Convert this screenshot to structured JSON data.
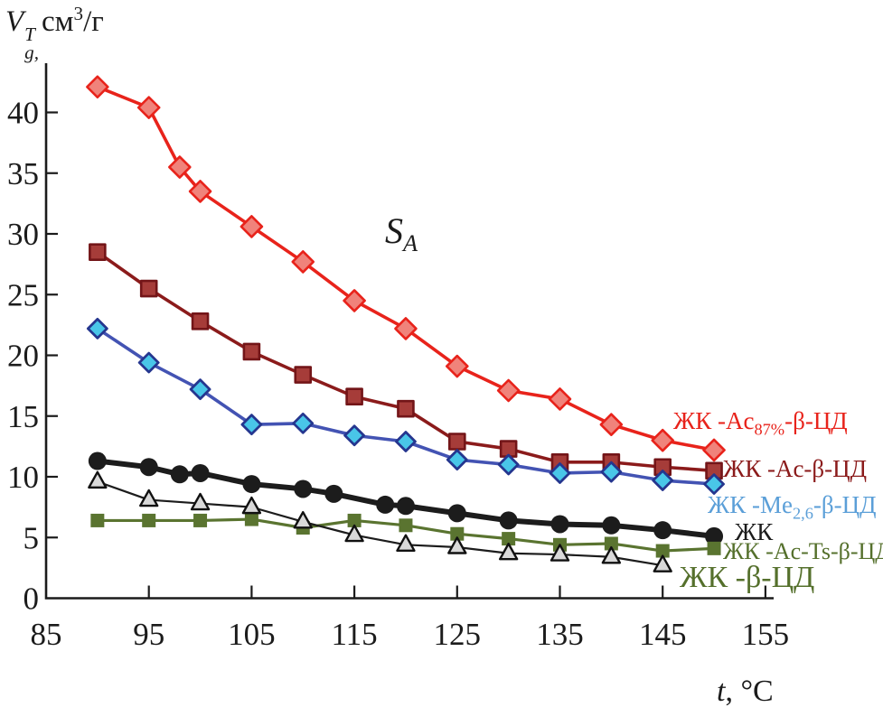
{
  "chart_data": {
    "type": "line",
    "y_title": {
      "base": "V",
      "sup": "T",
      "sub": "g,",
      "unit": "см",
      "exp": "3",
      "denom": "/г"
    },
    "x_title": {
      "base": "t",
      "rest": ", °C"
    },
    "annotation": {
      "base": "S",
      "sub": "A"
    },
    "xlim": [
      85,
      157
    ],
    "ylim": [
      0,
      44
    ],
    "x_ticks": [
      85,
      95,
      105,
      115,
      125,
      135,
      145,
      155
    ],
    "y_ticks": [
      0,
      5,
      10,
      15,
      20,
      25,
      30,
      35,
      40
    ],
    "grid": false,
    "legend_position": "inline-right",
    "axis_color": "#1b1b1b",
    "series": [
      {
        "id": "ac87-b-cd",
        "label": {
          "pre": "ЖК -Ac",
          "sub": "87%",
          "post": "-β-ЦД"
        },
        "label_color": "#e8231b",
        "line_color": "#e8231b",
        "line_width": 3.6,
        "marker": {
          "shape": "diamond",
          "size": 11.5,
          "fill": "#f0837b",
          "stroke": "#e8231b",
          "stroke_width": 2.6
        },
        "x": [
          90,
          95,
          98,
          100,
          105,
          110,
          115,
          120,
          125,
          130,
          135,
          140,
          145,
          150
        ],
        "y": [
          42.1,
          40.4,
          35.5,
          33.5,
          30.6,
          27.7,
          24.5,
          22.2,
          19.1,
          17.1,
          16.4,
          14.3,
          13.0,
          12.2
        ]
      },
      {
        "id": "ac-b-cd",
        "label": {
          "pre": "ЖК -Ac-β-ЦД",
          "sub": "",
          "post": ""
        },
        "label_color": "#8b1b1b",
        "line_color": "#8b1b1b",
        "line_width": 3.6,
        "marker": {
          "shape": "square",
          "size": 17,
          "fill": "#a63c39",
          "stroke": "#731518",
          "stroke_width": 2.6
        },
        "x": [
          90,
          95,
          100,
          105,
          110,
          115,
          120,
          125,
          130,
          135,
          140,
          145,
          150
        ],
        "y": [
          28.5,
          25.5,
          22.8,
          20.3,
          18.4,
          16.6,
          15.6,
          12.9,
          12.3,
          11.2,
          11.2,
          10.8,
          10.5
        ]
      },
      {
        "id": "me26-b-cd",
        "label": {
          "pre": "ЖК -Me",
          "sub": "2,6",
          "post": "-β-ЦД"
        },
        "label_color": "#5b9fd8",
        "line_color": "#4353b3",
        "line_width": 3.6,
        "marker": {
          "shape": "diamond",
          "size": 10.5,
          "fill": "#49c6e8",
          "stroke": "#25368f",
          "stroke_width": 2.8
        },
        "x": [
          90,
          95,
          100,
          105,
          110,
          115,
          120,
          125,
          130,
          135,
          140,
          145,
          150
        ],
        "y": [
          22.2,
          19.4,
          17.2,
          14.3,
          14.4,
          13.4,
          12.9,
          11.4,
          11.0,
          10.3,
          10.4,
          9.7,
          9.4
        ]
      },
      {
        "id": "zhk",
        "label": {
          "pre": "ЖК",
          "sub": "",
          "post": ""
        },
        "label_color": "#1c1c1c",
        "line_color": "#1c1c1c",
        "line_width": 6,
        "marker": {
          "shape": "circle",
          "size": 10,
          "fill": "#1c1c1c",
          "stroke": "#1c1c1c",
          "stroke_width": 0
        },
        "x": [
          90,
          95,
          98,
          100,
          105,
          110,
          113,
          118,
          120,
          125,
          130,
          135,
          140,
          145,
          150
        ],
        "y": [
          11.3,
          10.8,
          10.2,
          10.3,
          9.4,
          9.0,
          8.6,
          7.7,
          7.6,
          7.0,
          6.4,
          6.1,
          6.0,
          5.6,
          5.1
        ]
      },
      {
        "id": "ac-ts-b-cd",
        "label": {
          "pre": "ЖК -Ac-Ts-β-ЦД",
          "sub": "",
          "post": ""
        },
        "label_color": "#55702c",
        "line_color": "#5a7430",
        "line_width": 3.2,
        "marker": {
          "shape": "square",
          "size": 15,
          "fill": "#5a7430",
          "stroke": "#5a7430",
          "stroke_width": 0
        },
        "x": [
          90,
          95,
          100,
          105,
          110,
          115,
          120,
          125,
          130,
          135,
          140,
          145,
          150
        ],
        "y": [
          6.4,
          6.4,
          6.4,
          6.5,
          5.8,
          6.4,
          6.0,
          5.3,
          4.9,
          4.4,
          4.5,
          3.9,
          4.1
        ]
      },
      {
        "id": "b-cd",
        "label": {
          "pre": "ЖК -β-ЦД",
          "sub": "",
          "post": ""
        },
        "label_color": "#55702c",
        "line_color": "#1c1c1c",
        "line_width": 2.2,
        "marker": {
          "shape": "triangle",
          "size": 19,
          "fill": "#d9d9d9",
          "stroke": "#111111",
          "stroke_width": 2.4
        },
        "x": [
          90,
          95,
          100,
          105,
          110,
          115,
          120,
          125,
          130,
          135,
          140,
          145
        ],
        "y": [
          9.6,
          8.1,
          7.8,
          7.5,
          6.3,
          5.2,
          4.4,
          4.2,
          3.7,
          3.6,
          3.4,
          2.7
        ]
      }
    ]
  }
}
